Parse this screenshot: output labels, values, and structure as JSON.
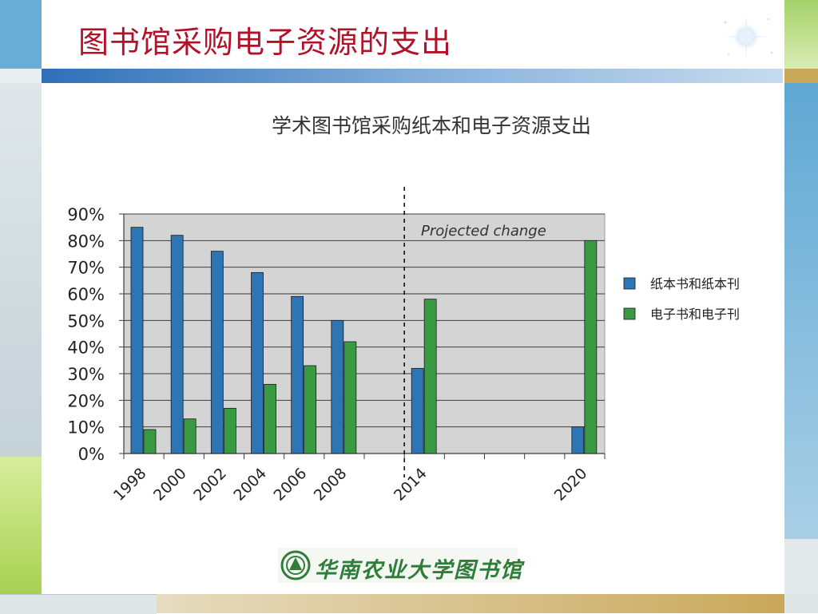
{
  "slide": {
    "title": "图书馆采购电子资源的支出",
    "logo_text": "华南农业大学图书馆"
  },
  "theme": {
    "title_color": "#b0122a",
    "print_color": "#2e75b6",
    "electronic_color": "#3a9a44",
    "plot_bg": "#d4d4d4",
    "accent_blue": "#5fa8d3",
    "accent_green": "#8cc63f",
    "accent_gold": "#c9a85a"
  },
  "chart_data": {
    "type": "bar",
    "title": "学术图书馆采购纸本和电子资源支出",
    "categories": [
      "1998",
      "2000",
      "2002",
      "2004",
      "2006",
      "2008",
      "2014",
      "2020"
    ],
    "series": [
      {
        "name": "纸本书和纸本刊",
        "values": [
          85,
          82,
          76,
          68,
          59,
          50,
          32,
          10
        ]
      },
      {
        "name": "电子书和电子刊",
        "values": [
          9,
          13,
          17,
          26,
          33,
          42,
          58,
          80
        ]
      }
    ],
    "ylim": [
      0,
      90
    ],
    "yticks": [
      "0%",
      "10%",
      "20%",
      "30%",
      "40%",
      "50%",
      "60%",
      "70%",
      "80%",
      "90%"
    ],
    "annotation": "Projected change",
    "legend_position": "right",
    "grid": true
  }
}
